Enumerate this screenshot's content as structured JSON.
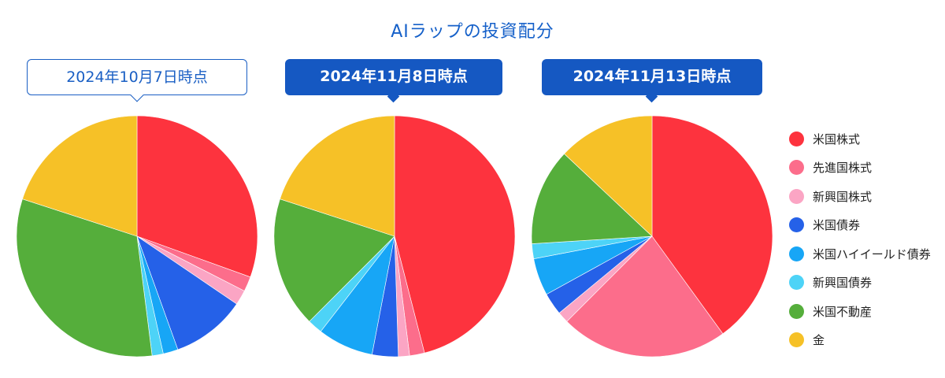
{
  "title": "AIラップの投資配分",
  "legend": [
    {
      "name": "米国株式",
      "color": "#fd333e"
    },
    {
      "name": "先進国株式",
      "color": "#fc6d8b"
    },
    {
      "name": "新興国株式",
      "color": "#fba5c4"
    },
    {
      "name": "米国債券",
      "color": "#2561e8"
    },
    {
      "name": "米国ハイイールド債券",
      "color": "#17a6f6"
    },
    {
      "name": "新興国債券",
      "color": "#4dd3f7"
    },
    {
      "name": "米国不動産",
      "color": "#55ae3b"
    },
    {
      "name": "金",
      "color": "#f6c127"
    }
  ],
  "chart_data": [
    {
      "type": "pie",
      "title": "2024年10月7日時点",
      "highlighted": false,
      "categories": [
        "米国株式",
        "先進国株式",
        "新興国株式",
        "米国債券",
        "米国ハイイールド債券",
        "新興国債券",
        "米国不動産",
        "金"
      ],
      "values": [
        30.5,
        2.0,
        2.0,
        10.0,
        2.0,
        1.5,
        32.0,
        20.0
      ]
    },
    {
      "type": "pie",
      "title": "2024年11月8日時点",
      "highlighted": true,
      "categories": [
        "米国株式",
        "先進国株式",
        "新興国株式",
        "米国債券",
        "米国ハイイールド債券",
        "新興国債券",
        "米国不動産",
        "金"
      ],
      "values": [
        46.0,
        2.0,
        1.5,
        3.5,
        7.5,
        2.0,
        17.5,
        20.0
      ]
    },
    {
      "type": "pie",
      "title": "2024年11月13日時点",
      "highlighted": true,
      "categories": [
        "米国株式",
        "先進国株式",
        "新興国株式",
        "米国債券",
        "米国ハイイールド債券",
        "新興国債券",
        "米国不動産",
        "金"
      ],
      "values": [
        40.0,
        22.5,
        1.5,
        3.0,
        5.0,
        2.0,
        13.0,
        13.0
      ]
    }
  ]
}
